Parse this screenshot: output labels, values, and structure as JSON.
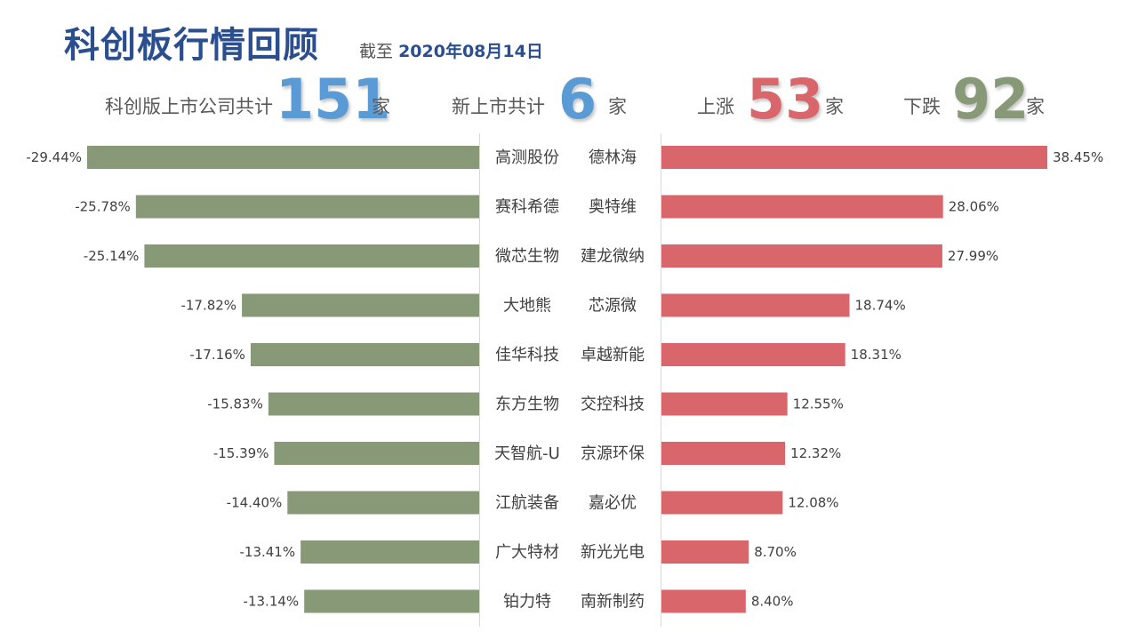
{
  "header": {
    "title": "科创板行情回顾",
    "date_prefix": "截至",
    "date": "2020年08月14日"
  },
  "stats": {
    "total": {
      "label": "科创版上市公司共计",
      "value": "151",
      "unit": "家",
      "color": "#5b9bd5"
    },
    "new": {
      "label": "新上市共计",
      "value": "6",
      "unit": "家",
      "color": "#5b9bd5"
    },
    "up": {
      "label": "上涨",
      "value": "53",
      "unit": "家",
      "color": "#d9666b"
    },
    "down": {
      "label": "下跌",
      "value": "92",
      "unit": "家",
      "color": "#889978"
    }
  },
  "colors": {
    "loser_bar": "#889978",
    "gainer_bar": "#d9666b",
    "axis_line": "#d9d9d9"
  },
  "chart_data": {
    "type": "bar",
    "losers": {
      "names": [
        "高测股份",
        "赛科希德",
        "微芯生物",
        "大地熊",
        "佳华科技",
        "东方生物",
        "天智航-U",
        "江航装备",
        "广大特材",
        "铂力特"
      ],
      "values": [
        -29.44,
        -25.78,
        -25.14,
        -17.82,
        -17.16,
        -15.83,
        -15.39,
        -14.4,
        -13.41,
        -13.14
      ],
      "labels": [
        "-29.44%",
        "-25.78%",
        "-25.14%",
        "-17.82%",
        "-17.16%",
        "-15.83%",
        "-15.39%",
        "-14.40%",
        "-13.41%",
        "-13.14%"
      ]
    },
    "gainers": {
      "names": [
        "德林海",
        "奥特维",
        "建龙微纳",
        "芯源微",
        "卓越新能",
        "交控科技",
        "京源环保",
        "嘉必优",
        "新光光电",
        "南新制药"
      ],
      "values": [
        38.45,
        28.06,
        27.99,
        18.74,
        18.31,
        12.55,
        12.32,
        12.08,
        8.7,
        8.4
      ],
      "labels": [
        "38.45%",
        "28.06%",
        "27.99%",
        "18.74%",
        "18.31%",
        "12.55%",
        "12.32%",
        "12.08%",
        "8.70%",
        "8.40%"
      ]
    }
  }
}
